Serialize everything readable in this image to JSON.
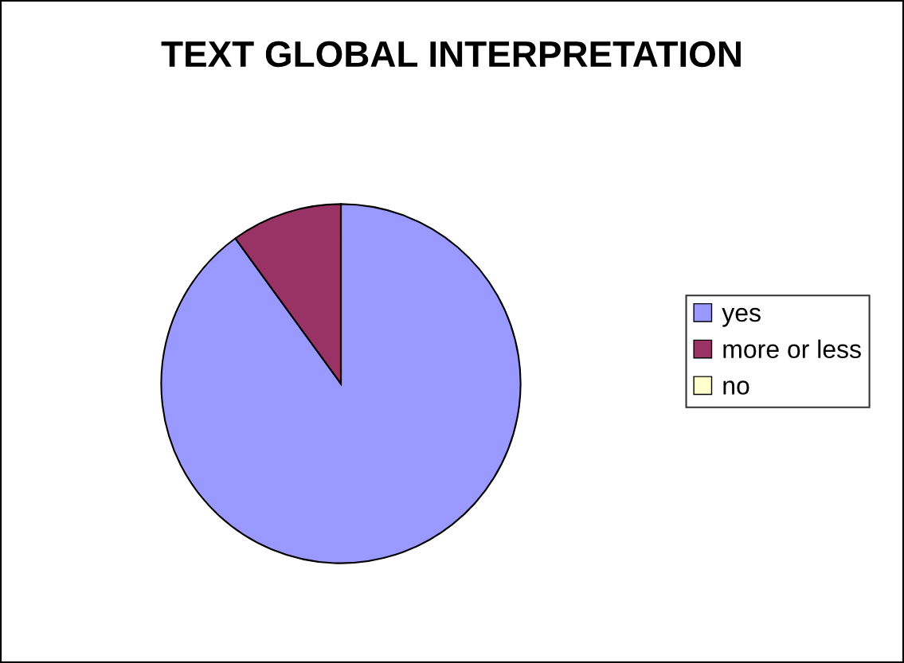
{
  "chart_data": {
    "type": "pie",
    "title": "TEXT GLOBAL INTERPRETATION",
    "categories": [
      "yes",
      "more or less",
      "no"
    ],
    "values": [
      90,
      10,
      0
    ],
    "colors": [
      "#9999ff",
      "#993366",
      "#ffffcc"
    ],
    "legend": "right"
  }
}
